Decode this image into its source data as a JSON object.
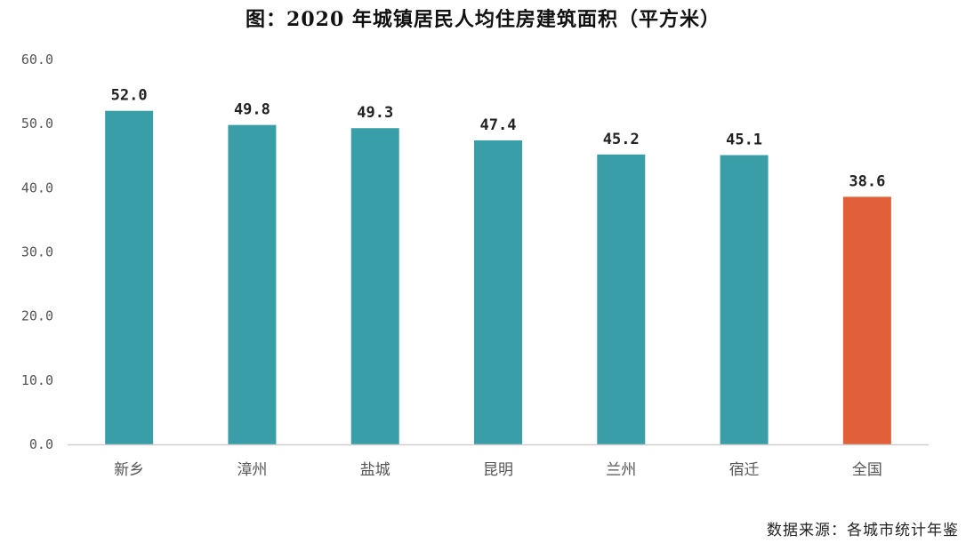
{
  "chart_data": {
    "type": "bar",
    "title": "图：2020 年城镇居民人均住房建筑面积（平方米）",
    "categories": [
      "新乡",
      "漳州",
      "盐城",
      "昆明",
      "兰州",
      "宿迁",
      "全国"
    ],
    "values": [
      52.0,
      49.8,
      49.3,
      47.4,
      45.2,
      45.1,
      38.6
    ],
    "data_labels": [
      "52.0",
      "49.8",
      "49.3",
      "47.4",
      "45.2",
      "45.1",
      "38.6"
    ],
    "colors": [
      "#3a9ea8",
      "#3a9ea8",
      "#3a9ea8",
      "#3a9ea8",
      "#3a9ea8",
      "#3a9ea8",
      "#e0603a"
    ],
    "ylim": [
      0,
      60
    ],
    "yticks": [
      0,
      10,
      20,
      30,
      40,
      50,
      60
    ],
    "ytick_labels": [
      "0.0",
      "10.0",
      "20.0",
      "30.0",
      "40.0",
      "50.0",
      "60.0"
    ],
    "xlabel": "",
    "ylabel": "",
    "grid": false,
    "legend": "none"
  },
  "footer": {
    "source": "数据来源：各城市统计年鉴"
  }
}
